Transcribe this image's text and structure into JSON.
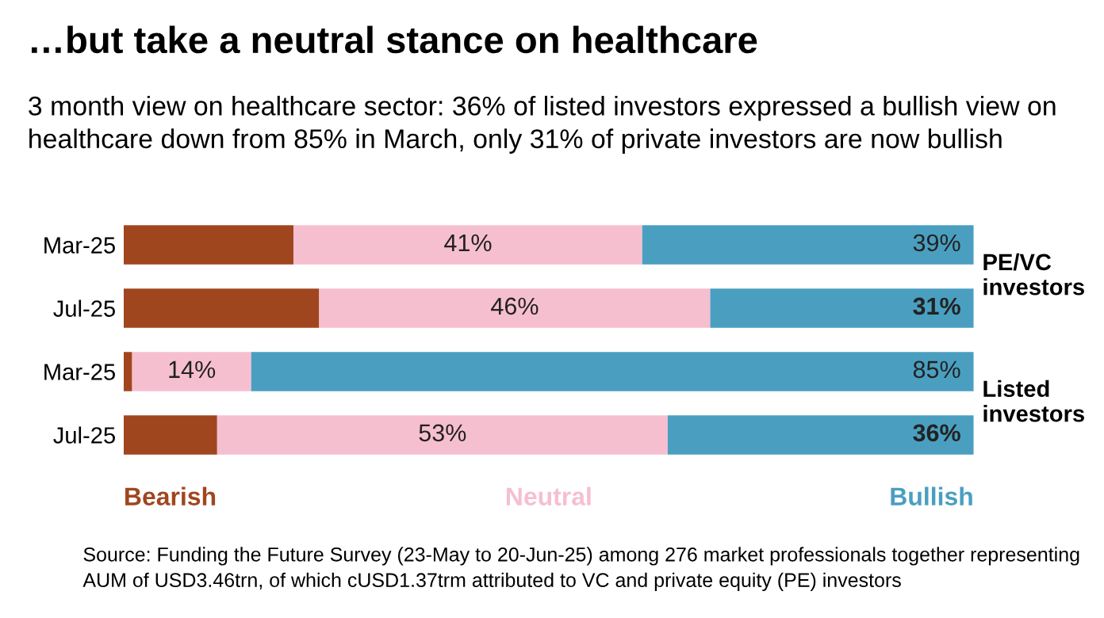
{
  "chart_data": {
    "type": "bar",
    "orientation": "horizontal",
    "stacked": true,
    "tick_labels": "y",
    "title": "…but take a neutral stance on healthcare",
    "subtitle": "3 month view on healthcare sector: 36% of listed investors expressed a bullish view on healthcare down from 85% in March, only 31% of private investors are now bullish",
    "categories": [
      "Mar-25",
      "Jul-25",
      "Mar-25",
      "Jul-25"
    ],
    "series": [
      {
        "name": "Bearish",
        "color": "#a0461f",
        "values": [
          20,
          23,
          1,
          11
        ]
      },
      {
        "name": "Neutral",
        "color": "#f6bfd0",
        "values": [
          41,
          46,
          14,
          53
        ],
        "value_labels": [
          "41%",
          "46%",
          "14%",
          "53%"
        ]
      },
      {
        "name": "Bullish",
        "color": "#4a9fc0",
        "values": [
          39,
          31,
          85,
          36
        ],
        "value_labels": [
          "39%",
          "31%",
          "85%",
          "36%"
        ]
      }
    ],
    "annotations": [
      "PE/VC\ninvestors",
      "Listed\ninvestors",
      "Source: Funding the Future Survey (23-May to 20-Jun-25) among 276 market professionals together representing AUM of USD3.46trn, of which cUSD1.37trm attributed to VC and private equity (PE) investors"
    ],
    "legend": "bottom",
    "grid": false
  }
}
